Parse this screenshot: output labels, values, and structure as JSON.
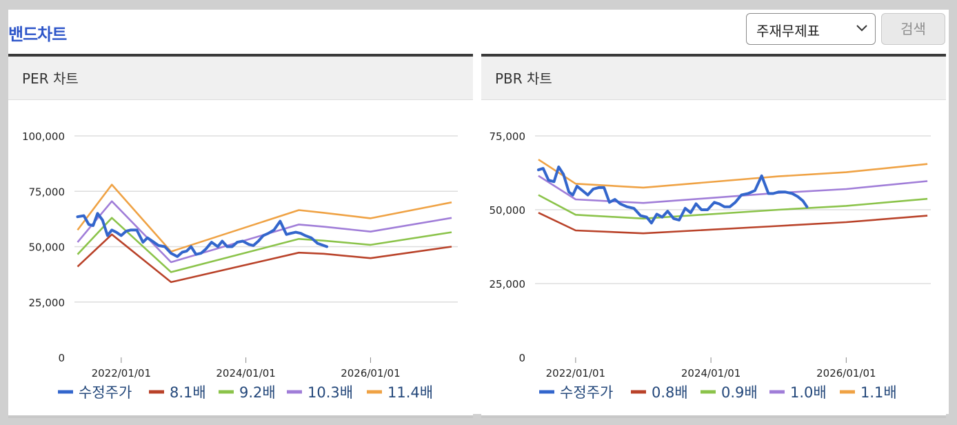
{
  "header": {
    "title": "밴드차트",
    "select_value": "주재무제표",
    "search_label": "검색"
  },
  "colors": {
    "price": "#3366cc",
    "band1": "#b94229",
    "band2": "#8bc34a",
    "band3": "#a07dd8",
    "band4": "#efa244",
    "grid": "#dddddd",
    "axis": "#888888",
    "title": "#2e56c9"
  },
  "chart_data": [
    {
      "type": "line",
      "title": "PER 차트",
      "ylim": [
        0,
        100000
      ],
      "xlim": [
        2021.25,
        2027.4
      ],
      "yticks": [
        {
          "v": 0,
          "label": "0"
        },
        {
          "v": 25000,
          "label": "25,000"
        },
        {
          "v": 50000,
          "label": "50,000"
        },
        {
          "v": 75000,
          "label": "75,000"
        },
        {
          "v": 100000,
          "label": "100,000"
        }
      ],
      "xticks": [
        {
          "v": 2022.0,
          "label": "2022/01/01"
        },
        {
          "v": 2024.0,
          "label": "2024/01/01"
        },
        {
          "v": 2026.0,
          "label": "2026/01/01"
        }
      ],
      "bands": [
        {
          "name": "8.1배",
          "x": [
            2021.3,
            2021.85,
            2022.8,
            2024.85,
            2025.25,
            2026.0,
            2027.3
          ],
          "values": [
            41000,
            55500,
            34000,
            47300,
            46800,
            44800,
            50000
          ]
        },
        {
          "name": "9.2배",
          "x": [
            2021.3,
            2021.85,
            2022.8,
            2024.85,
            2025.25,
            2026.0,
            2027.3
          ],
          "values": [
            46500,
            63000,
            38500,
            53500,
            52700,
            50800,
            56500
          ]
        },
        {
          "name": "10.3배",
          "x": [
            2021.3,
            2021.85,
            2022.8,
            2024.85,
            2025.25,
            2026.0,
            2027.3
          ],
          "values": [
            52000,
            70500,
            43000,
            60000,
            59000,
            56800,
            63000
          ]
        },
        {
          "name": "11.4배",
          "x": [
            2021.3,
            2021.85,
            2022.8,
            2024.85,
            2025.25,
            2026.0,
            2027.3
          ],
          "values": [
            57500,
            78000,
            47800,
            66500,
            65300,
            62800,
            70000
          ]
        }
      ],
      "price": {
        "name": "수정주가",
        "x": [
          2021.3,
          2021.4,
          2021.48,
          2021.55,
          2021.62,
          2021.7,
          2021.78,
          2021.85,
          2021.92,
          2022.0,
          2022.08,
          2022.15,
          2022.25,
          2022.35,
          2022.42,
          2022.5,
          2022.6,
          2022.7,
          2022.8,
          2022.9,
          2022.98,
          2023.05,
          2023.12,
          2023.2,
          2023.28,
          2023.36,
          2023.45,
          2023.55,
          2023.62,
          2023.7,
          2023.78,
          2023.86,
          2023.95,
          2024.05,
          2024.12,
          2024.2,
          2024.28,
          2024.36,
          2024.45,
          2024.55,
          2024.65,
          2024.72,
          2024.8,
          2024.88,
          2024.95,
          2025.05,
          2025.15,
          2025.3
        ],
        "values": [
          63500,
          64000,
          60000,
          59500,
          65000,
          62000,
          55000,
          57500,
          56500,
          55000,
          57000,
          57500,
          57500,
          52000,
          54000,
          52500,
          50500,
          50000,
          47000,
          45500,
          47500,
          48000,
          50000,
          46500,
          47000,
          49000,
          52000,
          50000,
          52500,
          50000,
          50000,
          52000,
          52500,
          51000,
          50500,
          52500,
          55000,
          56000,
          57500,
          61500,
          55500,
          56000,
          56500,
          56000,
          55000,
          54000,
          51500,
          50000
        ]
      }
    },
    {
      "type": "line",
      "title": "PBR 차트",
      "ylim": [
        0,
        75000
      ],
      "xlim": [
        2021.4,
        2027.25
      ],
      "yticks": [
        {
          "v": 0,
          "label": "0"
        },
        {
          "v": 25000,
          "label": "25,000"
        },
        {
          "v": 50000,
          "label": "50,000"
        },
        {
          "v": 75000,
          "label": "75,000"
        }
      ],
      "xticks": [
        {
          "v": 2022.0,
          "label": "2022/01/01"
        },
        {
          "v": 2024.0,
          "label": "2024/01/01"
        },
        {
          "v": 2026.0,
          "label": "2026/01/01"
        }
      ],
      "bands": [
        {
          "name": "0.8배",
          "x": [
            2021.45,
            2022.0,
            2023.0,
            2025.0,
            2026.0,
            2027.2
          ],
          "values": [
            49000,
            43000,
            42000,
            44500,
            45800,
            48000
          ]
        },
        {
          "name": "0.9배",
          "x": [
            2021.45,
            2022.0,
            2023.0,
            2025.0,
            2026.0,
            2027.2
          ],
          "values": [
            55000,
            48300,
            47000,
            50000,
            51300,
            53700
          ]
        },
        {
          "name": "1.0배",
          "x": [
            2021.45,
            2022.0,
            2023.0,
            2025.0,
            2026.0,
            2027.2
          ],
          "values": [
            61500,
            53500,
            52300,
            55700,
            57000,
            59700
          ]
        },
        {
          "name": "1.1배",
          "x": [
            2021.45,
            2022.0,
            2023.0,
            2025.0,
            2026.0,
            2027.2
          ],
          "values": [
            67000,
            58800,
            57500,
            61300,
            62700,
            65500
          ]
        }
      ],
      "price": {
        "name": "수정주가",
        "x": [
          2021.45,
          2021.52,
          2021.6,
          2021.68,
          2021.75,
          2021.82,
          2021.9,
          2021.96,
          2022.02,
          2022.1,
          2022.18,
          2022.26,
          2022.34,
          2022.42,
          2022.5,
          2022.58,
          2022.66,
          2022.76,
          2022.86,
          2022.96,
          2023.05,
          2023.12,
          2023.2,
          2023.28,
          2023.36,
          2023.45,
          2023.53,
          2023.62,
          2023.7,
          2023.78,
          2023.86,
          2023.95,
          2024.05,
          2024.12,
          2024.2,
          2024.28,
          2024.36,
          2024.45,
          2024.55,
          2024.65,
          2024.75,
          2024.85,
          2024.92,
          2025.0,
          2025.1,
          2025.2,
          2025.28,
          2025.36,
          2025.42
        ],
        "values": [
          63500,
          64000,
          60000,
          59500,
          64500,
          62000,
          56000,
          55000,
          58000,
          56500,
          55000,
          57000,
          57500,
          57500,
          52500,
          53500,
          52000,
          51000,
          50500,
          48000,
          47500,
          45500,
          48500,
          47500,
          49500,
          47000,
          46500,
          50500,
          49000,
          52000,
          50000,
          50000,
          52500,
          52000,
          51000,
          51000,
          52500,
          55000,
          55500,
          56500,
          61500,
          55500,
          55500,
          56000,
          56000,
          55500,
          54500,
          53000,
          51000
        ]
      }
    }
  ]
}
